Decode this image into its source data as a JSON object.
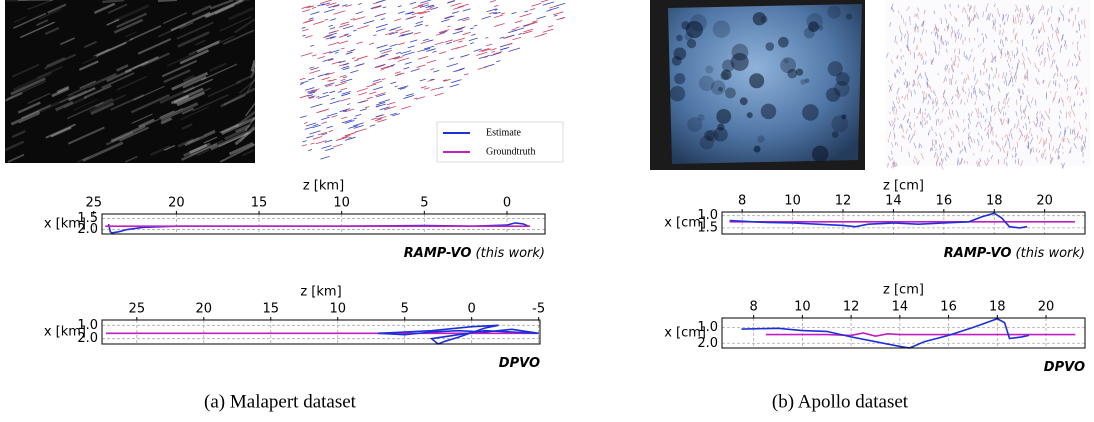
{
  "chart_data": [
    {
      "type": "line",
      "method": "RAMP-VO",
      "note": "(this work)",
      "xlabel": "z [km]",
      "ylabel": "x [km]",
      "xlim": [
        24.5,
        -2.3
      ],
      "xticks": [
        25,
        20,
        15,
        10,
        5,
        0
      ],
      "ylim": [
        2.2,
        1.3
      ],
      "yticks": [
        1.5,
        2.0
      ],
      "grid": true,
      "series": [
        {
          "name": "Estimate",
          "color": "#1f2fd8",
          "x": [
            24.1,
            24.0,
            23.9,
            23.5,
            23.0,
            22,
            20,
            15,
            10,
            5,
            2,
            0,
            -0.5,
            -1.0,
            -1.3
          ],
          "values": [
            1.75,
            2.1,
            2.15,
            2.1,
            2.0,
            1.9,
            1.85,
            1.85,
            1.85,
            1.82,
            1.85,
            1.8,
            1.7,
            1.75,
            1.85
          ]
        },
        {
          "name": "Groundtruth",
          "color": "#c21fc2",
          "x": [
            24.3,
            -1.4
          ],
          "values": [
            1.85,
            1.85
          ]
        }
      ]
    },
    {
      "type": "line",
      "method": "DPVO",
      "xlabel": "z [km]",
      "ylabel": "x [km]",
      "xlim": [
        27.6,
        -5.1
      ],
      "xticks": [
        25,
        20,
        15,
        10,
        5,
        0,
        -5
      ],
      "ylim": [
        2.4,
        0.6
      ],
      "yticks": [
        1.0,
        2.0
      ],
      "grid": true,
      "series": [
        {
          "name": "Groundtruth",
          "color": "#c21fc2",
          "x": [
            27.3,
            -5.0
          ],
          "values": [
            1.6,
            1.6
          ]
        },
        {
          "name": "Estimate",
          "color": "#1f2fd8",
          "x": [
            7.0,
            5,
            3,
            1,
            -1,
            -3,
            -5,
            -3,
            -1,
            1,
            3,
            2.5,
            2,
            1,
            -1,
            -2,
            0,
            3,
            5,
            7
          ],
          "values": [
            1.6,
            1.7,
            1.5,
            1.4,
            1.5,
            1.3,
            1.6,
            1.5,
            1.4,
            1.7,
            2.0,
            2.4,
            2.2,
            1.9,
            1.2,
            1.0,
            1.1,
            1.4,
            1.5,
            1.6
          ]
        }
      ]
    },
    {
      "type": "line",
      "method": "RAMP-VO",
      "note": "(this work)",
      "xlabel": "z [cm]",
      "ylabel": "x [cm]",
      "xlim": [
        7.2,
        21.6
      ],
      "xticks": [
        8,
        10,
        12,
        14,
        16,
        18,
        20
      ],
      "ylim": [
        1.75,
        0.85
      ],
      "yticks": [
        1.0,
        1.5
      ],
      "grid": true,
      "series": [
        {
          "name": "Groundtruth",
          "color": "#c21fc2",
          "x": [
            7.5,
            21.2
          ],
          "values": [
            1.25,
            1.25
          ]
        },
        {
          "name": "Estimate",
          "color": "#1f2fd8",
          "x": [
            7.5,
            9,
            10,
            11,
            12,
            12.5,
            13,
            14,
            15,
            16,
            17,
            17.5,
            18,
            18.3,
            18.6,
            19,
            19.3
          ],
          "values": [
            1.2,
            1.28,
            1.3,
            1.35,
            1.4,
            1.45,
            1.35,
            1.3,
            1.35,
            1.3,
            1.25,
            1.05,
            0.9,
            1.1,
            1.45,
            1.5,
            1.45
          ]
        }
      ]
    },
    {
      "type": "line",
      "method": "DPVO",
      "xlabel": "z [cm]",
      "ylabel": "x [cm]",
      "xlim": [
        6.7,
        21.6
      ],
      "xticks": [
        8,
        10,
        12,
        14,
        16,
        18,
        20
      ],
      "ylim": [
        2.3,
        0.4
      ],
      "yticks": [
        1.0,
        2.0
      ],
      "grid": true,
      "series": [
        {
          "name": "Groundtruth",
          "color": "#c21fc2",
          "x": [
            8.5,
            11,
            12,
            12.5,
            13,
            13.5,
            14,
            21.2
          ],
          "values": [
            1.45,
            1.45,
            1.5,
            1.35,
            1.55,
            1.4,
            1.45,
            1.45
          ]
        },
        {
          "name": "Estimate",
          "color": "#1f2fd8",
          "x": [
            7.5,
            9,
            10,
            11,
            12,
            13,
            14,
            14.4,
            15,
            16,
            17,
            18,
            18.3,
            18.5,
            19,
            19.3
          ],
          "values": [
            1.1,
            1.05,
            1.2,
            1.25,
            1.6,
            1.9,
            2.2,
            2.3,
            1.9,
            1.5,
            1.0,
            0.45,
            0.7,
            1.7,
            1.6,
            1.5
          ]
        }
      ]
    }
  ],
  "captions": [
    "(a) Malapert dataset",
    "(b) Apollo dataset"
  ]
}
